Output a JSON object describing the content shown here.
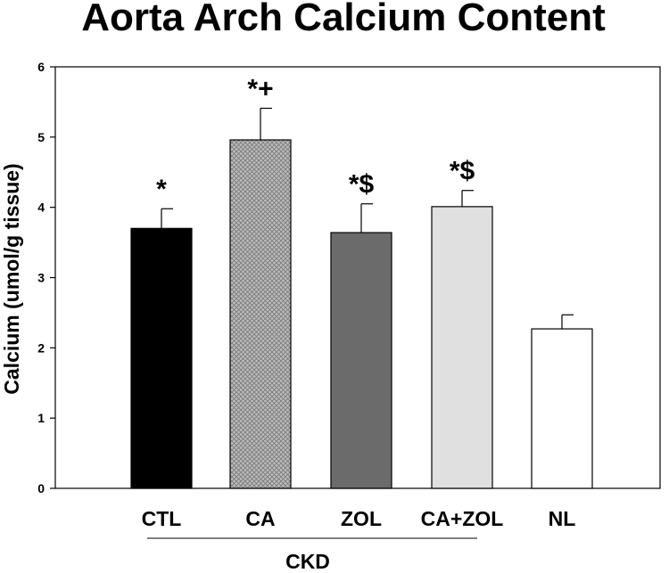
{
  "chart_data": {
    "type": "bar",
    "title": "Aorta Arch Calcium Content",
    "xlabel": "",
    "ylabel": "Calcium (umol/g tissue)",
    "ylim": [
      0,
      6
    ],
    "yticks": [
      "0",
      "1",
      "2",
      "3",
      "4",
      "5",
      "6"
    ],
    "categories": [
      "CTL",
      "CA",
      "ZOL",
      "CA+ZOL",
      "NL"
    ],
    "values": [
      3.7,
      4.96,
      3.64,
      4.01,
      2.27
    ],
    "errors": [
      0.28,
      0.45,
      0.41,
      0.23,
      0.2
    ],
    "annotations": [
      "*",
      "*+",
      "*$",
      "*$",
      ""
    ],
    "group_label": "CKD",
    "bar_colors": [
      "#000000",
      "#bdbdbd",
      "#6b6b6b",
      "#e0e0e0",
      "#ffffff"
    ],
    "bar_patterns": [
      "solid",
      "crosshatch",
      "solid",
      "solid",
      "solid"
    ],
    "grid": false
  }
}
